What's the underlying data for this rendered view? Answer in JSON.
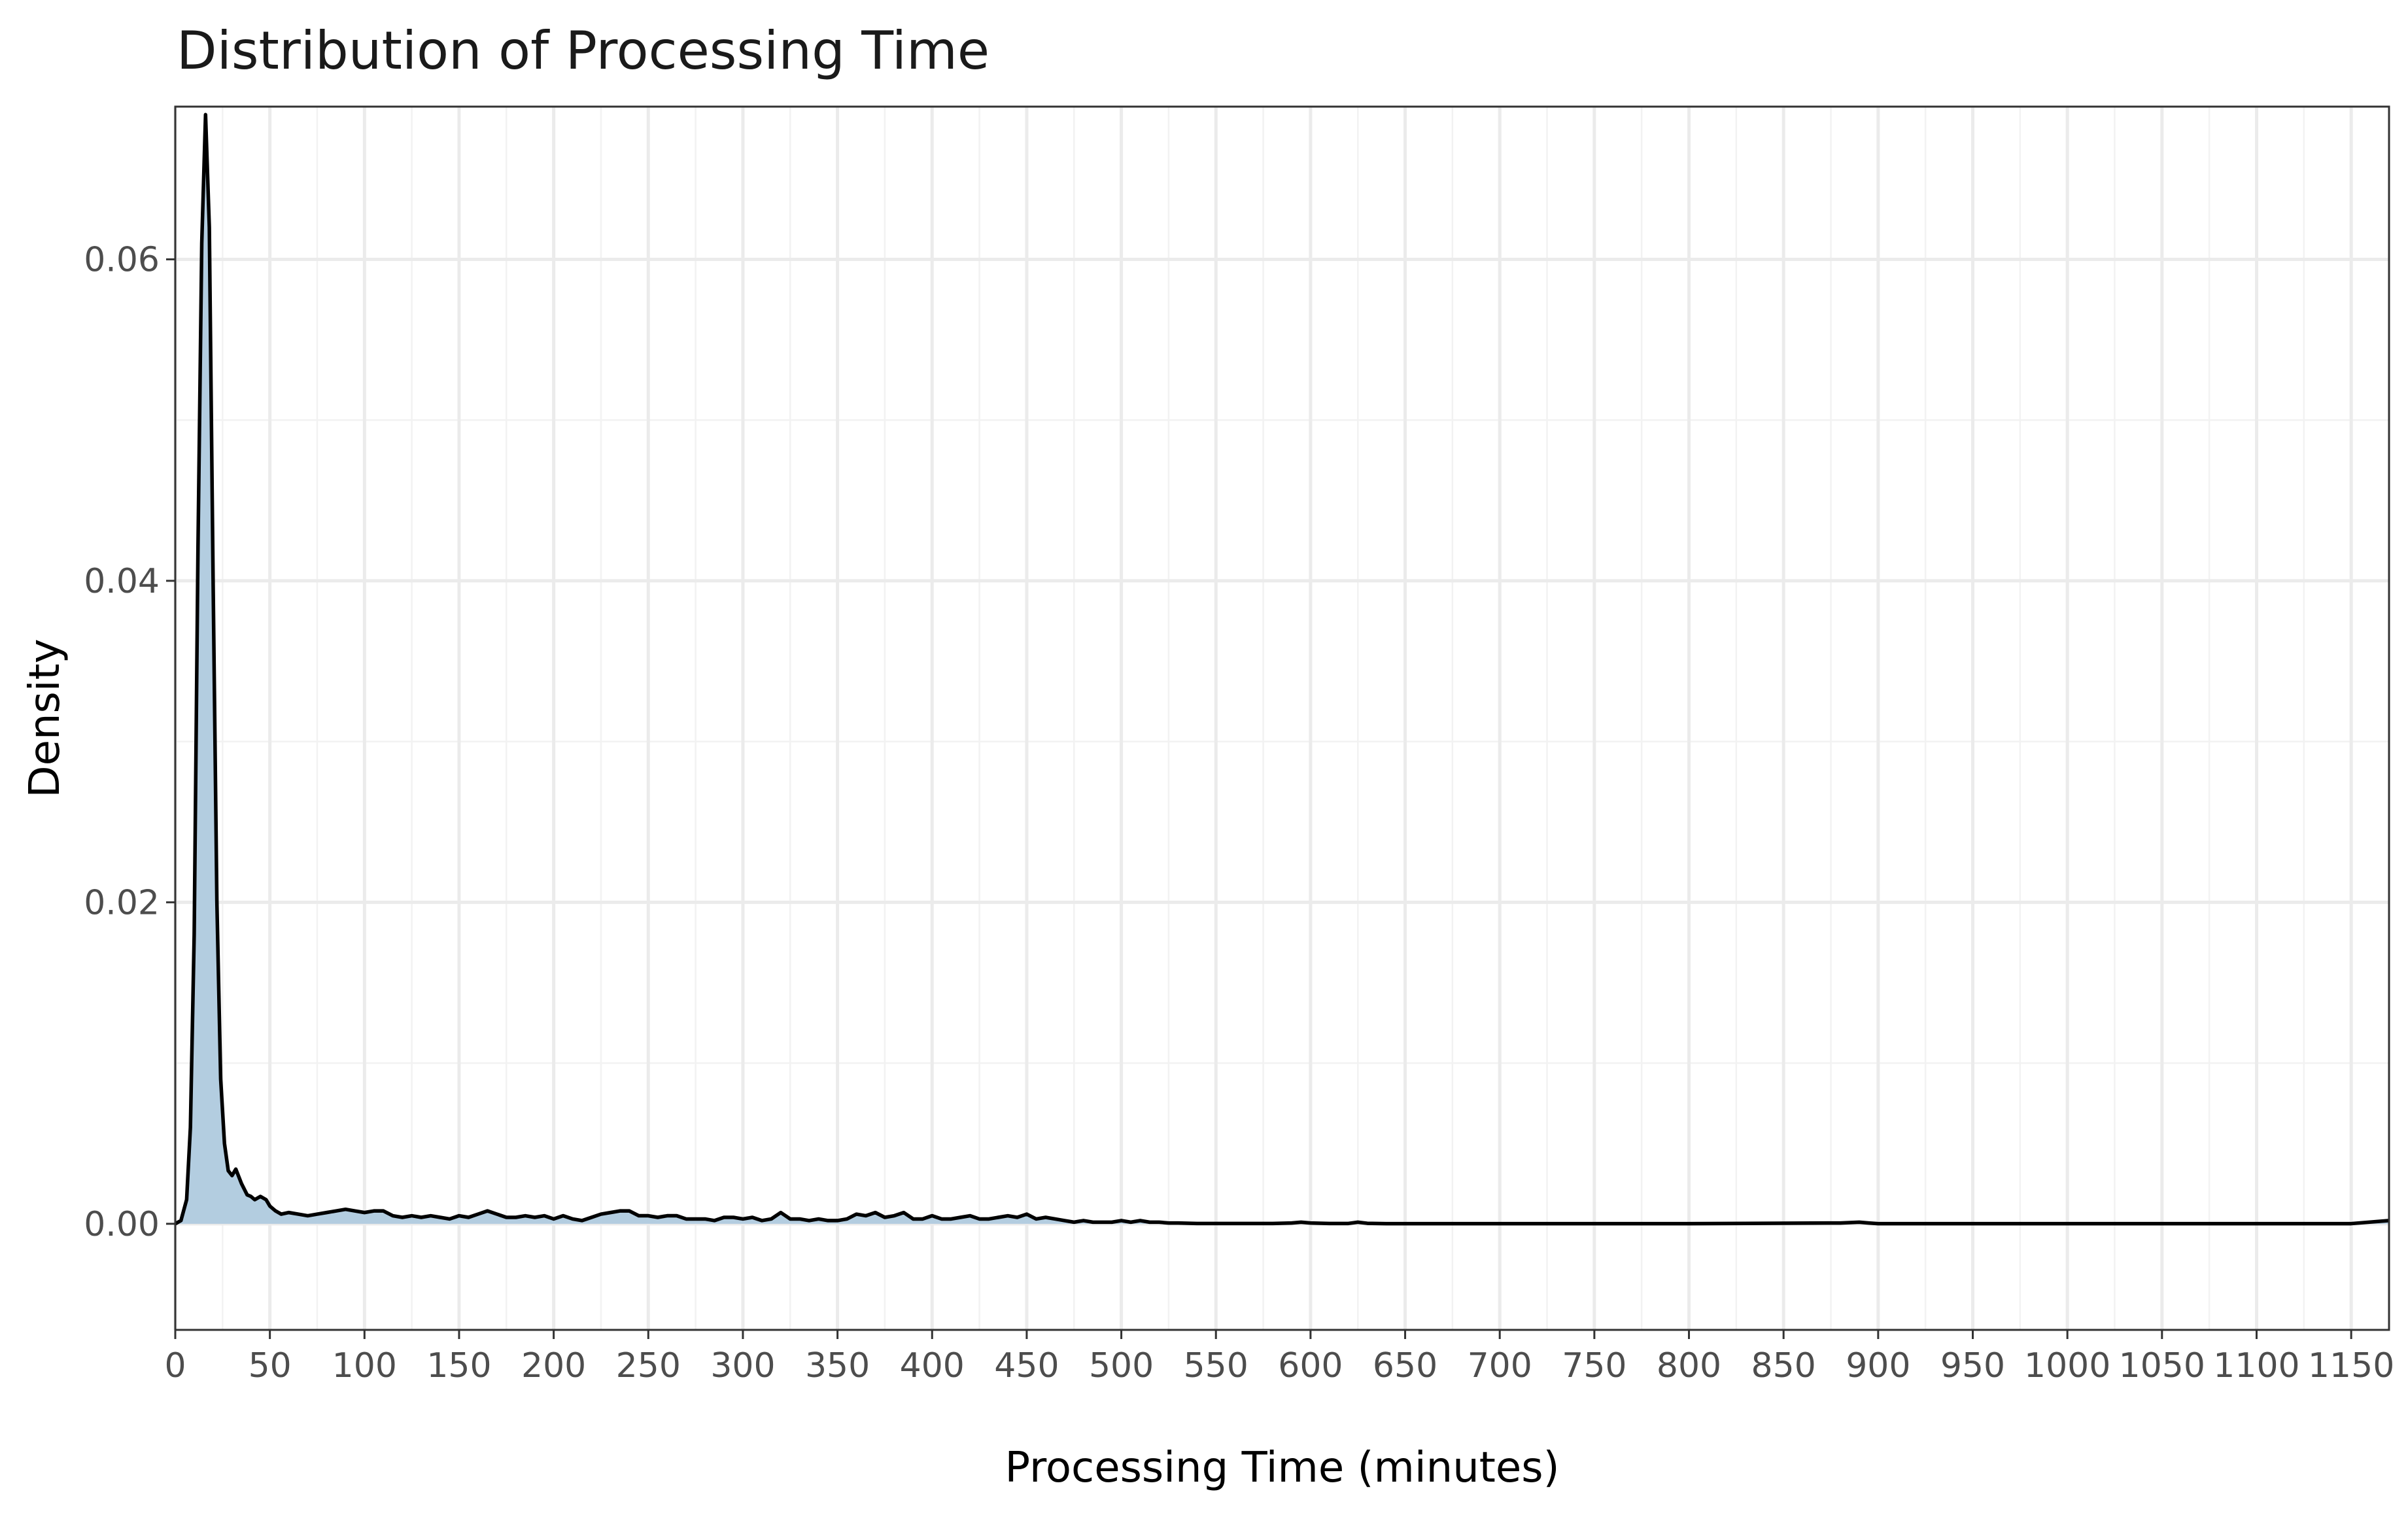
{
  "chart_data": {
    "type": "area",
    "title": "Distribution of Processing Time",
    "xlabel": "Processing Time (minutes)",
    "ylabel": "Density",
    "xlim": [
      0,
      1170
    ],
    "ylim": [
      -0.0066,
      0.0695
    ],
    "x_ticks": [
      0,
      50,
      100,
      150,
      200,
      250,
      300,
      350,
      400,
      450,
      500,
      550,
      600,
      650,
      700,
      750,
      800,
      850,
      900,
      950,
      1000,
      1050,
      1100,
      1150
    ],
    "x_tick_labels": [
      "0",
      "50",
      "100",
      "150",
      "200",
      "250",
      "300",
      "350",
      "400",
      "450",
      "500",
      "550",
      "600",
      "650",
      "700",
      "750",
      "800",
      "850",
      "900",
      "950",
      "1000",
      "1050",
      "1100",
      "1150"
    ],
    "y_ticks": [
      0,
      0.02,
      0.04,
      0.06
    ],
    "y_tick_labels": [
      "0.00",
      "0.02",
      "0.04",
      "0.06"
    ],
    "grid": true,
    "legend": "none",
    "colors": {
      "fill": "#b3cde0",
      "line": "#000000",
      "grid_major": "#ebebeb",
      "grid_minor": "#f2f2f2"
    },
    "series": [
      {
        "x": [
          0,
          3,
          6,
          8,
          10,
          12,
          14,
          16,
          18,
          20,
          22,
          24,
          26,
          28,
          30,
          32,
          35,
          38,
          40,
          42,
          45,
          48,
          50,
          53,
          56,
          60,
          65,
          70,
          75,
          80,
          85,
          90,
          95,
          100,
          105,
          110,
          115,
          120,
          125,
          130,
          135,
          140,
          145,
          150,
          155,
          160,
          165,
          170,
          175,
          180,
          185,
          190,
          195,
          200,
          205,
          210,
          215,
          220,
          225,
          230,
          235,
          240,
          245,
          250,
          255,
          260,
          265,
          270,
          275,
          280,
          285,
          290,
          295,
          300,
          305,
          310,
          315,
          320,
          325,
          330,
          335,
          340,
          345,
          350,
          355,
          360,
          365,
          370,
          375,
          380,
          385,
          390,
          395,
          400,
          405,
          410,
          415,
          420,
          425,
          430,
          435,
          440,
          445,
          450,
          455,
          460,
          465,
          470,
          475,
          480,
          485,
          490,
          495,
          500,
          505,
          510,
          515,
          520,
          525,
          530,
          540,
          560,
          580,
          590,
          595,
          600,
          610,
          620,
          625,
          630,
          640,
          700,
          800,
          880,
          890,
          895,
          900,
          950,
          1000,
          1050,
          1100,
          1150,
          1170
        ],
        "y": [
          0,
          0.0002,
          0.0015,
          0.006,
          0.018,
          0.042,
          0.061,
          0.069,
          0.062,
          0.04,
          0.02,
          0.009,
          0.005,
          0.0033,
          0.003,
          0.0034,
          0.0025,
          0.0018,
          0.0017,
          0.0015,
          0.0017,
          0.0015,
          0.0011,
          0.0008,
          0.0006,
          0.0007,
          0.0006,
          0.0005,
          0.0006,
          0.0007,
          0.0008,
          0.0009,
          0.0008,
          0.0007,
          0.0008,
          0.0008,
          0.0005,
          0.0004,
          0.0005,
          0.0004,
          0.0005,
          0.0004,
          0.0003,
          0.0005,
          0.0004,
          0.0006,
          0.0008,
          0.0006,
          0.0004,
          0.0004,
          0.0005,
          0.0004,
          0.0005,
          0.0003,
          0.0005,
          0.0003,
          0.0002,
          0.0004,
          0.0006,
          0.0007,
          0.0008,
          0.0008,
          0.0005,
          0.0005,
          0.0004,
          0.0005,
          0.0005,
          0.0003,
          0.0003,
          0.0003,
          0.0002,
          0.0004,
          0.0004,
          0.0003,
          0.0004,
          0.0002,
          0.0003,
          0.0007,
          0.0003,
          0.0003,
          0.0002,
          0.0003,
          0.0002,
          0.0002,
          0.0003,
          0.0006,
          0.0005,
          0.0007,
          0.0004,
          0.0005,
          0.0007,
          0.0003,
          0.0003,
          0.0005,
          0.0003,
          0.0003,
          0.0004,
          0.0005,
          0.0003,
          0.0003,
          0.0004,
          0.0005,
          0.0004,
          0.0006,
          0.0003,
          0.0004,
          0.0003,
          0.0002,
          0.0001,
          0.0002,
          0.0001,
          0.0001,
          0.0001,
          0.0002,
          0.0001,
          0.0002,
          0.0001,
          0.0001,
          5e-05,
          5e-05,
          2e-05,
          2e-05,
          2e-05,
          5e-05,
          0.0001,
          5e-05,
          2e-05,
          2e-05,
          0.0001,
          3e-05,
          1e-05,
          1e-05,
          1e-05,
          5e-05,
          0.0001,
          5e-05,
          1e-05,
          1e-05,
          1e-05,
          1e-05,
          1e-05,
          1e-05,
          0.0002
        ]
      }
    ]
  }
}
